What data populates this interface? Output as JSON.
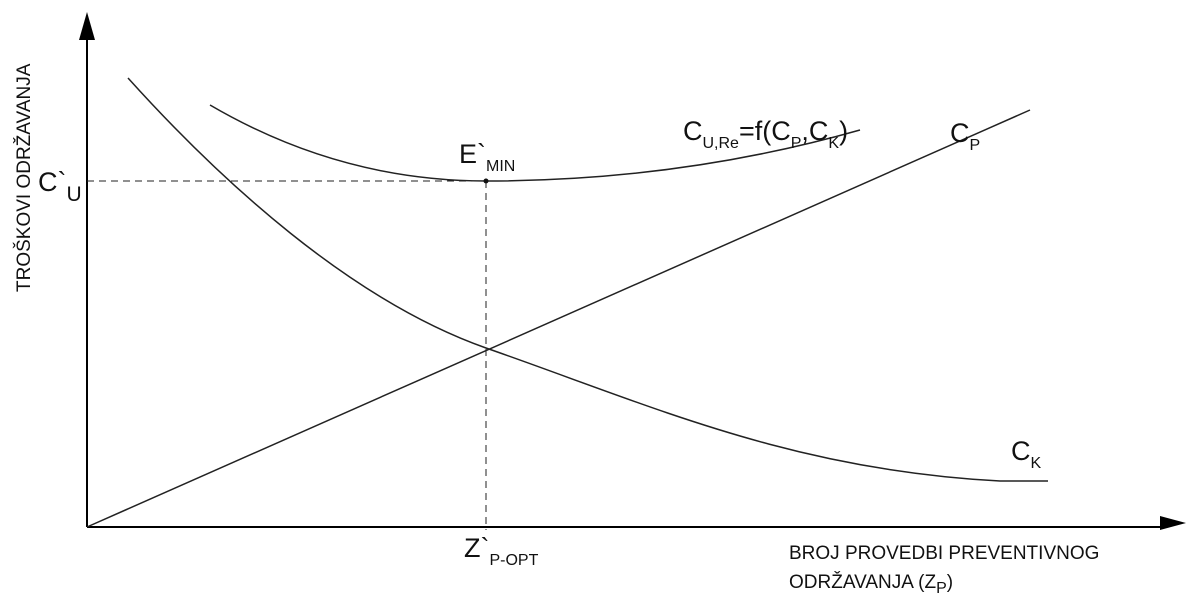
{
  "axes": {
    "y_title": "TROŠKOVI ODRŽAVANJA",
    "x_title_line1": "BROJ PROVEDBI PREVENTIVNOG",
    "x_title_line2_main": "ODRŽAVANJA (Z",
    "x_title_line2_sub": "P",
    "x_title_line2_end": ")"
  },
  "curves": {
    "total": {
      "main1": "C",
      "sub1": "U,Re",
      "main2": "=f(C",
      "sub2": "P",
      "main3": ",C",
      "sub3": "K",
      "main4": ")"
    },
    "preventive": {
      "main": "C",
      "sub": "P"
    },
    "corrective": {
      "main": "C",
      "sub": "K"
    }
  },
  "points": {
    "minimum": {
      "main": "E`",
      "sub": "MIN"
    },
    "optimum": {
      "main": "Z`",
      "sub": "P-OPT"
    },
    "cost": {
      "main": "C`",
      "sub": "U"
    }
  }
}
